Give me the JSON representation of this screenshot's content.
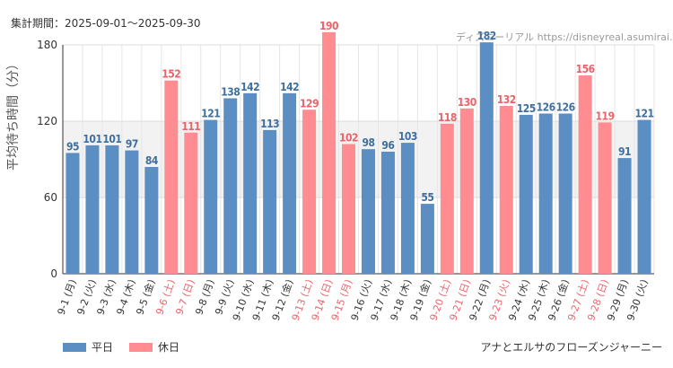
{
  "header": {
    "period": "集計期間：2025-09-01～2025-09-30",
    "watermark": "ディズニーリアル https://disneyreal.asumirai.info"
  },
  "footer": {
    "attraction": "アナとエルサのフローズンジャーニー"
  },
  "colors": {
    "weekday": "#5b8ec3",
    "holiday": "#ff8c91",
    "weekday_label": "#3f6f9e",
    "holiday_label": "#e8646b",
    "band": "#f2f2f2"
  },
  "chart_data": {
    "type": "bar",
    "ylabel": "平均待ち時間（分）",
    "ylim": [
      0,
      180
    ],
    "yticks": [
      0,
      60,
      120,
      180
    ],
    "grid": true,
    "legend_position": "bottom-left",
    "legend": [
      {
        "name": "平日",
        "key": "weekday"
      },
      {
        "name": "休日",
        "key": "holiday"
      }
    ],
    "categories": [
      "9-1 (月)",
      "9-2 (火)",
      "9-3 (水)",
      "9-4 (木)",
      "9-5 (金)",
      "9-6 (土)",
      "9-7 (日)",
      "9-8 (月)",
      "9-9 (火)",
      "9-10 (水)",
      "9-11 (木)",
      "9-12 (金)",
      "9-13 (土)",
      "9-14 (日)",
      "9-15 (月)",
      "9-16 (火)",
      "9-17 (水)",
      "9-18 (木)",
      "9-19 (金)",
      "9-20 (土)",
      "9-21 (日)",
      "9-22 (月)",
      "9-23 (火)",
      "9-24 (水)",
      "9-25 (木)",
      "9-26 (金)",
      "9-27 (土)",
      "9-28 (日)",
      "9-29 (月)",
      "9-30 (火)"
    ],
    "values": [
      95,
      101,
      101,
      97,
      84,
      152,
      111,
      121,
      138,
      142,
      113,
      142,
      129,
      190,
      102,
      98,
      96,
      103,
      55,
      118,
      130,
      182,
      132,
      125,
      126,
      126,
      156,
      119,
      91,
      121
    ],
    "day_type": [
      "weekday",
      "weekday",
      "weekday",
      "weekday",
      "weekday",
      "holiday",
      "holiday",
      "weekday",
      "weekday",
      "weekday",
      "weekday",
      "weekday",
      "holiday",
      "holiday",
      "holiday",
      "weekday",
      "weekday",
      "weekday",
      "weekday",
      "holiday",
      "holiday",
      "weekday",
      "holiday",
      "weekday",
      "weekday",
      "weekday",
      "holiday",
      "holiday",
      "weekday",
      "weekday"
    ]
  }
}
